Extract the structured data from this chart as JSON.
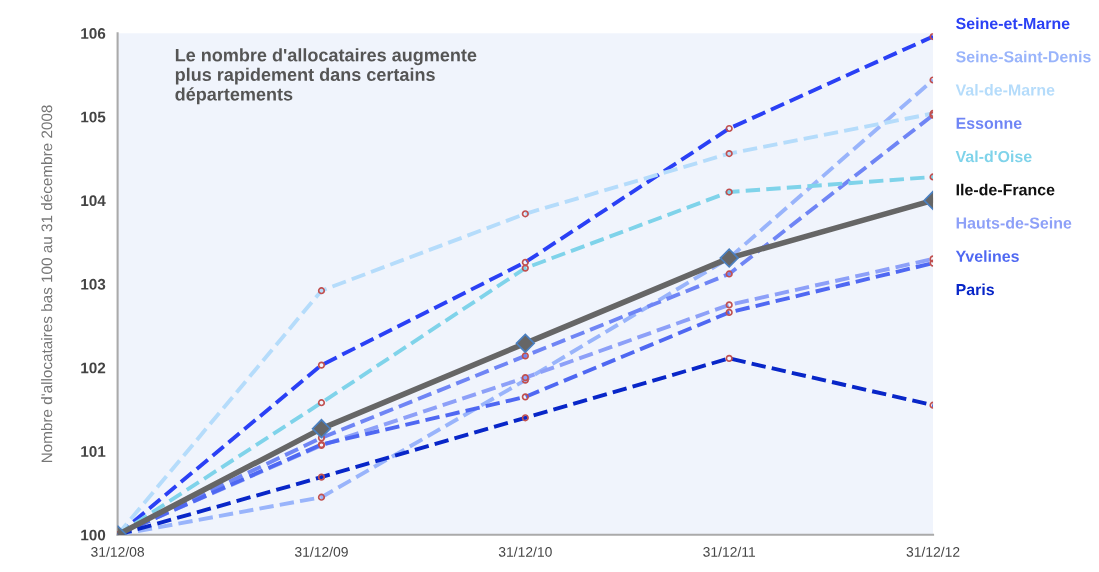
{
  "chart_data": {
    "type": "line",
    "ylabel": "Nombre d'allocataires bas 100 au 31 décembre 2008",
    "annotations": [
      "Le nombre d'allocataires augmente\nplus rapidement dans certains\ndépartements"
    ],
    "categories": [
      "31/12/08",
      "31/12/09",
      "31/12/10",
      "31/12/11",
      "31/12/12"
    ],
    "ylim": [
      100,
      106
    ],
    "yticks": [
      100,
      101,
      102,
      103,
      104,
      105,
      106
    ],
    "grid": false,
    "legend": "right",
    "line_style": "dashed",
    "marker": "circle",
    "series": [
      {
        "name": "Seine-et-Marne",
        "color": "#2a40f5",
        "values": [
          100,
          102.03,
          103.26,
          104.86,
          105.96
        ]
      },
      {
        "name": "Seine-Saint-Denis",
        "color": "#99b4fb",
        "values": [
          100,
          100.45,
          101.85,
          103.31,
          105.44
        ]
      },
      {
        "name": "Val-de-Marne",
        "color": "#b5dcfb",
        "values": [
          100,
          102.92,
          103.84,
          104.56,
          105.04
        ]
      },
      {
        "name": "Essonne",
        "color": "#6f85f5",
        "values": [
          100,
          101.16,
          102.14,
          103.12,
          105.02
        ]
      },
      {
        "name": "Val-d'Oise",
        "color": "#7fd3ea",
        "values": [
          100,
          101.58,
          103.19,
          104.1,
          104.28
        ]
      },
      {
        "name": "Ile-de-France",
        "color": "#666666",
        "values": [
          100,
          101.27,
          102.29,
          103.31,
          104.0
        ],
        "line_style": "solid",
        "marker": "diamond"
      },
      {
        "name": "Hauts-de-Seine",
        "color": "#8da0f8",
        "values": [
          100,
          101.07,
          101.88,
          102.75,
          103.3
        ]
      },
      {
        "name": "Yvelines",
        "color": "#4f68f2",
        "values": [
          100,
          101.08,
          101.65,
          102.66,
          103.25
        ]
      },
      {
        "name": "Paris",
        "color": "#0826c8",
        "values": [
          100,
          100.69,
          101.4,
          102.11,
          101.55
        ]
      }
    ]
  }
}
